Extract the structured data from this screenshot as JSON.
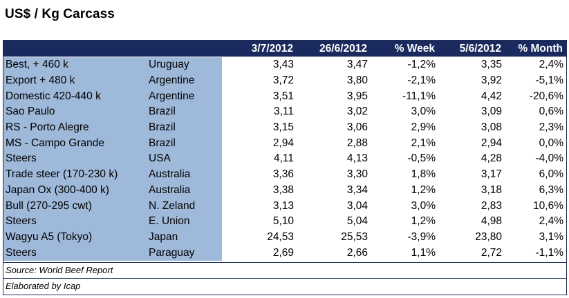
{
  "title": "US$ / Kg Carcass",
  "columns": [
    "3/7/2012",
    "26/6/2012",
    "% Week",
    "5/6/2012",
    "% Month"
  ],
  "rows": [
    {
      "name": "Best, + 460 k",
      "origin": "Uruguay",
      "v1": "3,43",
      "v2": "3,47",
      "week": "-1,2%",
      "v3": "3,35",
      "month": "2,4%"
    },
    {
      "name": "Export + 480 k",
      "origin": "Argentine",
      "v1": "3,72",
      "v2": "3,80",
      "week": "-2,1%",
      "v3": "3,92",
      "month": "-5,1%"
    },
    {
      "name": "Domestic 420-440 k",
      "origin": "Argentine",
      "v1": "3,51",
      "v2": "3,95",
      "week": "-11,1%",
      "v3": "4,42",
      "month": "-20,6%"
    },
    {
      "name": "Sao Paulo",
      "origin": "Brazil",
      "v1": "3,11",
      "v2": "3,02",
      "week": "3,0%",
      "v3": "3,09",
      "month": "0,6%"
    },
    {
      "name": "RS - Porto Alegre",
      "origin": "Brazil",
      "v1": "3,15",
      "v2": "3,06",
      "week": "2,9%",
      "v3": "3,08",
      "month": "2,3%"
    },
    {
      "name": "MS - Campo Grande",
      "origin": "Brazil",
      "v1": "2,94",
      "v2": "2,88",
      "week": "2,1%",
      "v3": "2,94",
      "month": "0,0%"
    },
    {
      "name": "Steers",
      "origin": "USA",
      "v1": "4,11",
      "v2": "4,13",
      "week": "-0,5%",
      "v3": "4,28",
      "month": "-4,0%"
    },
    {
      "name": "Trade steer (170-230 k)",
      "origin": "Australia",
      "v1": "3,36",
      "v2": "3,30",
      "week": "1,8%",
      "v3": "3,17",
      "month": "6,0%"
    },
    {
      "name": "Japan Ox (300-400 k)",
      "origin": "Australia",
      "v1": "3,38",
      "v2": "3,34",
      "week": "1,2%",
      "v3": "3,18",
      "month": "6,3%"
    },
    {
      "name": "Bull (270-295 cwt)",
      "origin": "N. Zeland",
      "v1": "3,13",
      "v2": "3,04",
      "week": "3,0%",
      "v3": "2,83",
      "month": "10,6%"
    },
    {
      "name": "Steers",
      "origin": "E. Union",
      "v1": "5,10",
      "v2": "5,04",
      "week": "1,2%",
      "v3": "4,98",
      "month": "2,4%"
    },
    {
      "name": "Wagyu A5 (Tokyo)",
      "origin": "Japan",
      "v1": "24,53",
      "v2": "25,53",
      "week": "-3,9%",
      "v3": "23,80",
      "month": "3,1%"
    },
    {
      "name": "Steers",
      "origin": "Paraguay",
      "v1": "2,69",
      "v2": "2,66",
      "week": "1,1%",
      "v3": "2,72",
      "month": "-1,1%"
    }
  ],
  "source": "Source: World Beef Report",
  "elaborated": "Elaborated by Icap",
  "colors": {
    "header": "#1a2a5e",
    "label_bg": "#9fb9da",
    "border": "#1c2c55"
  }
}
